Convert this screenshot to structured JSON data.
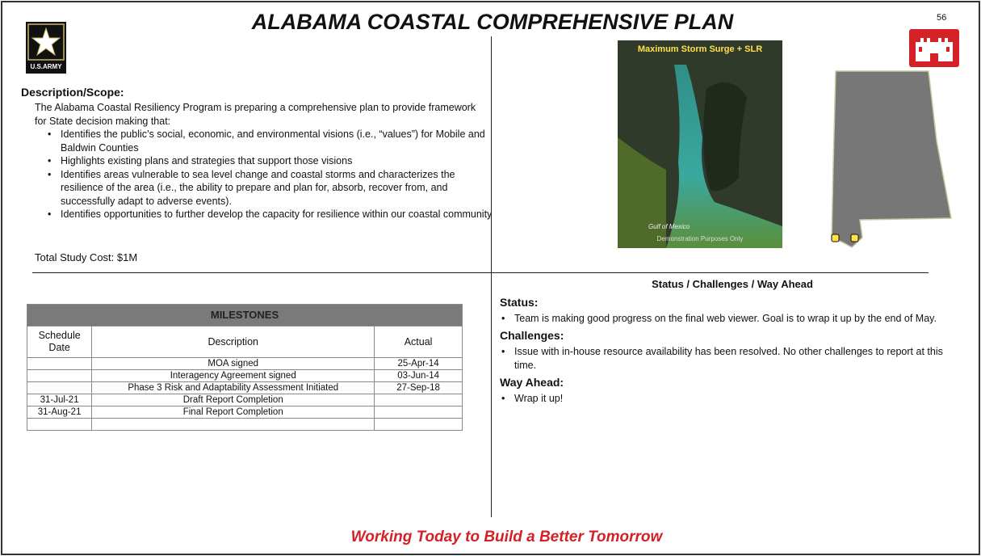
{
  "header": {
    "title": "ALABAMA COASTAL COMPREHENSIVE PLAN",
    "page_number": "56",
    "army_logo": "U.S.ARMY"
  },
  "description": {
    "heading": "Description/Scope:",
    "intro": "The Alabama Coastal Resiliency Program is preparing a comprehensive plan to  provide framework for State decision making that:",
    "bullets": [
      "Identifies the public’s social, economic, and environmental visions (i.e., “values”) for Mobile and Baldwin Counties",
      "Highlights existing plans and strategies that support those visions",
      "Identifies areas vulnerable to sea level change and coastal storms and characterizes the resilience of the area (i.e., the ability to prepare and plan for, absorb, recover from, and successfully adapt to adverse events).",
      "Identifies opportunities to further develop the capacity for resilience within our coastal community"
    ],
    "total_cost": "Total Study Cost:  $1M"
  },
  "map": {
    "caption": "Maximum Storm Surge + SLR",
    "water_label": "Gulf of Mexico",
    "note": "Demonstration Purposes Only"
  },
  "milestones": {
    "title": "MILESTONES",
    "columns": [
      "Schedule Date",
      "Description",
      "Actual"
    ],
    "rows": [
      [
        null,
        "MOA signed",
        "25-Apr-14"
      ],
      [
        null,
        "Interagency Agreement signed",
        "03-Jun-14"
      ],
      [
        null,
        "Phase 3 Risk and Adaptability Assessment Initiated",
        "27-Sep-18"
      ],
      [
        "31-Jul-21",
        "Draft Report Completion",
        null
      ],
      [
        "31-Aug-21",
        "Final Report Completion",
        null
      ],
      [
        null,
        null,
        null
      ]
    ]
  },
  "status": {
    "heading": "Status / Challenges / Way Ahead",
    "sections": [
      {
        "label": "Status:",
        "bullets": [
          "Team is making good progress on the final web viewer. Goal is to wrap it up by the end of May."
        ]
      },
      {
        "label": "Challenges:",
        "bullets": [
          "Issue with in-house resource availability has been resolved. No other challenges to report at this time."
        ]
      },
      {
        "label": "Way Ahead:",
        "bullets": [
          "Wrap it up!"
        ]
      }
    ]
  },
  "footer": {
    "tagline": "Working Today to Build a Better Tomorrow"
  }
}
